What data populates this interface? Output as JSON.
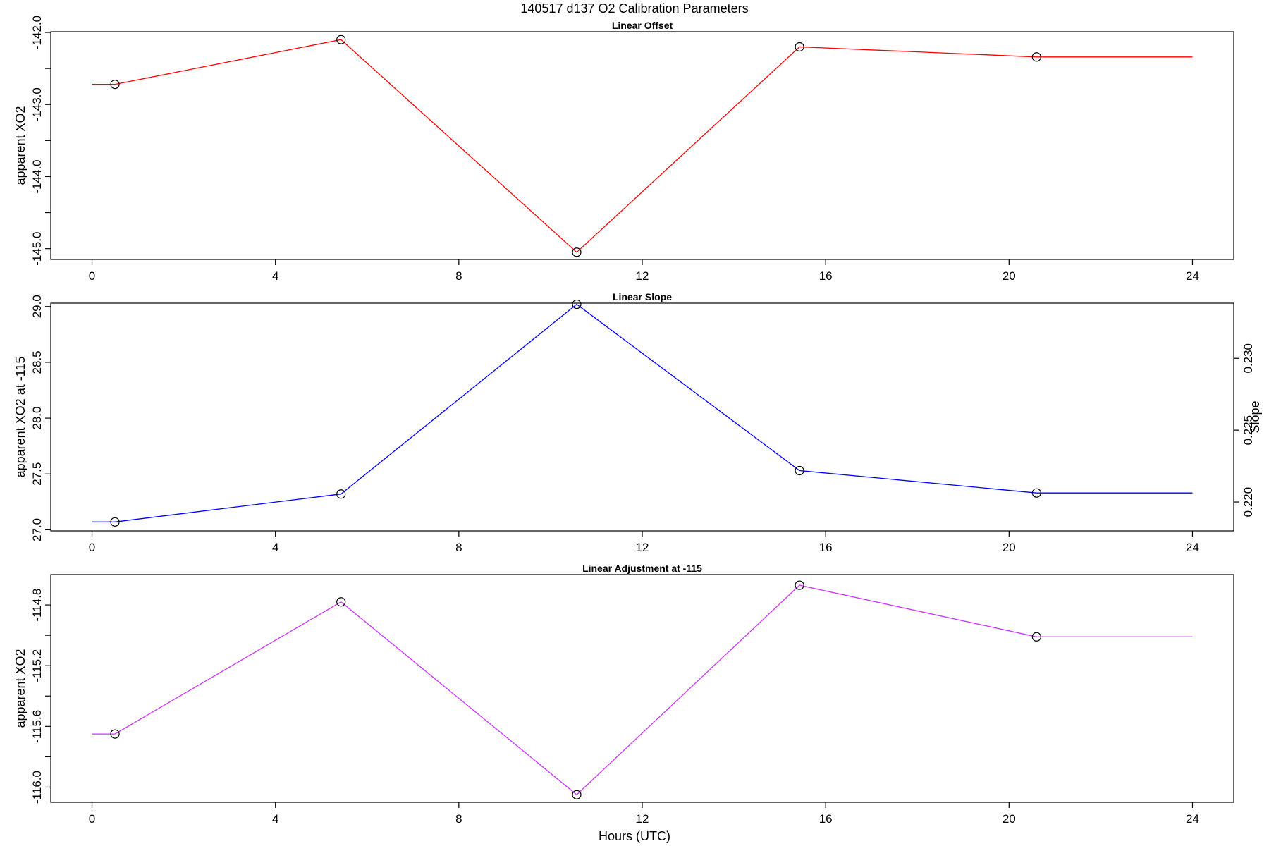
{
  "figure": {
    "title": "140517   d137   O2 Calibration Parameters",
    "xlabel": "Hours (UTC)"
  },
  "chart_data": [
    {
      "type": "line",
      "title": "Linear Offset",
      "xlabel": "",
      "ylabel": "apparent XO2",
      "color": "#ff0000",
      "xlim": [
        -0.9,
        24.9
      ],
      "ylim": [
        -145.15,
        -141.99
      ],
      "xticks": [
        0,
        4,
        8,
        12,
        16,
        20,
        24
      ],
      "yticks": [
        -145.0,
        -144.0,
        -143.0,
        -142.0
      ],
      "yticks_minor": [
        -144.5,
        -143.5,
        -142.5
      ],
      "ytick_labels": [
        "-145.0",
        "-144.0",
        "-143.0",
        "-142.0"
      ],
      "x": [
        0.0,
        0.5,
        5.43,
        10.57,
        15.43,
        20.6,
        24.0
      ],
      "y": [
        -142.72,
        -142.72,
        -142.1,
        -145.05,
        -142.2,
        -142.34,
        -142.34
      ],
      "markers_x": [
        0.5,
        5.43,
        10.57,
        15.43,
        20.6
      ],
      "markers_y": [
        -142.72,
        -142.1,
        -145.05,
        -142.2,
        -142.34
      ]
    },
    {
      "type": "line",
      "title": "Linear Slope",
      "xlabel": "",
      "ylabel": "apparent XO2 at -115",
      "y2label": "Slope",
      "color": "#0000ff",
      "xlim": [
        -0.9,
        24.9
      ],
      "ylim": [
        26.99,
        29.03
      ],
      "y2lim": [
        0.21799,
        0.23384
      ],
      "xticks": [
        0,
        4,
        8,
        12,
        16,
        20,
        24
      ],
      "yticks": [
        27.0,
        27.5,
        28.0,
        28.5,
        29.0
      ],
      "ytick_labels": [
        "27.0",
        "27.5",
        "28.0",
        "28.5",
        "29.0"
      ],
      "y2ticks": [
        0.22,
        0.225,
        0.23
      ],
      "y2tick_labels": [
        "0.220",
        "0.225",
        "0.230"
      ],
      "x": [
        0.0,
        0.5,
        5.43,
        10.57,
        15.43,
        20.6,
        24.0
      ],
      "y": [
        27.07,
        27.07,
        27.32,
        29.02,
        27.53,
        27.33,
        27.33
      ],
      "markers_x": [
        0.5,
        5.43,
        10.57,
        15.43,
        20.6
      ],
      "markers_y": [
        27.07,
        27.32,
        29.02,
        27.53,
        27.33
      ]
    },
    {
      "type": "line",
      "title": "Linear Adjustment at -115",
      "xlabel": "Hours (UTC)",
      "ylabel": "apparent XO2",
      "color": "#cc33ff",
      "xlim": [
        -0.9,
        24.9
      ],
      "ylim": [
        -116.1,
        -114.6
      ],
      "xticks": [
        0,
        4,
        8,
        12,
        16,
        20,
        24
      ],
      "yticks": [
        -116.0,
        -115.6,
        -115.2,
        -114.8
      ],
      "yticks_minor": [
        -115.8,
        -115.4,
        -115.0
      ],
      "ytick_labels": [
        "-116.0",
        "-115.6",
        "-115.2",
        "-114.8"
      ],
      "x": [
        0.0,
        0.5,
        5.43,
        10.57,
        15.43,
        20.6,
        24.0
      ],
      "y": [
        -115.65,
        -115.65,
        -114.78,
        -116.05,
        -114.67,
        -115.01,
        -115.01
      ],
      "markers_x": [
        0.5,
        5.43,
        10.57,
        15.43,
        20.6
      ],
      "markers_y": [
        -115.65,
        -114.78,
        -116.05,
        -114.67,
        -115.01
      ]
    }
  ]
}
